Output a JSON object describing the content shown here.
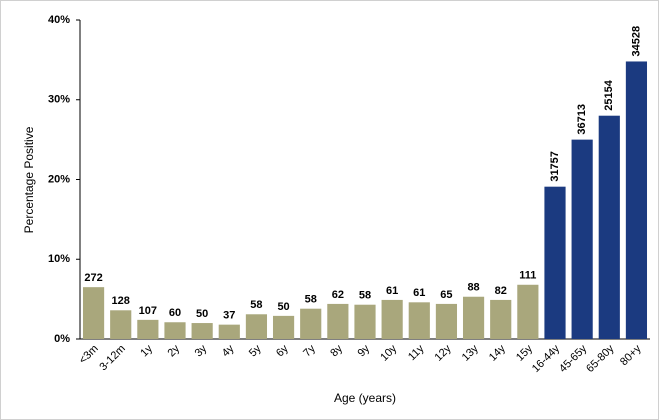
{
  "chart_data": {
    "type": "bar",
    "y_label": "Percentage Positive",
    "x_label": "Age (years)",
    "categories": [
      "<3m",
      "3-12m",
      "1y",
      "2y",
      "3y",
      "4y",
      "5y",
      "6y",
      "7y",
      "8y",
      "9y",
      "10y",
      "11y",
      "12y",
      "13y",
      "14y",
      "15y",
      "16-44y",
      "45-65y",
      "65-80y",
      "80+y"
    ],
    "values": [
      6.5,
      3.6,
      2.4,
      2.1,
      2.0,
      1.8,
      3.1,
      2.9,
      3.8,
      4.4,
      4.3,
      4.9,
      4.6,
      4.4,
      5.3,
      4.9,
      6.8,
      19.1,
      25.0,
      28.0,
      34.8
    ],
    "counts": [
      272,
      128,
      107,
      60,
      50,
      37,
      58,
      50,
      58,
      62,
      58,
      61,
      61,
      65,
      88,
      82,
      111,
      31757,
      36713,
      25154,
      34528
    ],
    "colors": [
      "#a9a77c",
      "#a9a77c",
      "#a9a77c",
      "#a9a77c",
      "#a9a77c",
      "#a9a77c",
      "#a9a77c",
      "#a9a77c",
      "#a9a77c",
      "#a9a77c",
      "#a9a77c",
      "#a9a77c",
      "#a9a77c",
      "#a9a77c",
      "#a9a77c",
      "#a9a77c",
      "#a9a77c",
      "#1b3a80",
      "#1b3a80",
      "#1b3a80",
      "#1b3a80"
    ],
    "ylim": [
      0,
      40
    ],
    "yticks": [
      {
        "value": 0,
        "label": "0%"
      },
      {
        "value": 10,
        "label": "10%"
      },
      {
        "value": 20,
        "label": "20%"
      },
      {
        "value": 30,
        "label": "30%"
      },
      {
        "value": 40,
        "label": "40%"
      }
    ],
    "grid": false
  }
}
